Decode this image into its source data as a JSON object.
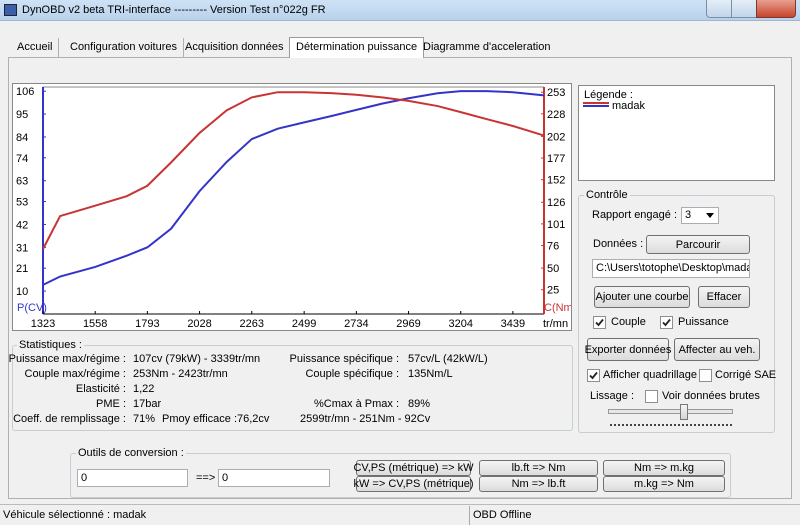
{
  "window": {
    "title": "DynOBD v2 beta TRI-interface --------- Version Test n°022g FR"
  },
  "tabs": [
    "Accueil",
    "Configuration voitures",
    "Acquisition données",
    "Détermination puissance",
    "Diagramme d'acceleration"
  ],
  "chart": {
    "type": "line",
    "x_label": "tr/mn",
    "y_label": "P(CV)",
    "y2_label": "C(Nm)",
    "xlim": [
      1323,
      3579
    ],
    "xticks": [
      1323,
      1558,
      1793,
      2028,
      2263,
      2499,
      2734,
      2969,
      3204,
      3439
    ],
    "ylim": [
      -1,
      108
    ],
    "yticks": [
      10,
      21,
      31,
      42,
      53,
      63,
      74,
      84,
      95,
      106
    ],
    "y2lim": [
      -3,
      259
    ],
    "y2ticks": [
      25,
      50,
      76,
      101,
      126,
      152,
      177,
      202,
      228,
      253
    ],
    "x": [
      1323,
      1400,
      1558,
      1700,
      1793,
      1900,
      2028,
      2150,
      2263,
      2380,
      2499,
      2620,
      2734,
      2850,
      2969,
      3100,
      3204,
      3320,
      3439,
      3579
    ],
    "series": [
      {
        "color": "#3434c8",
        "values": [
          13,
          17,
          21.6,
          27,
          31,
          40,
          58,
          72,
          83,
          88,
          91,
          94,
          97,
          100,
          102.6,
          105,
          106,
          106,
          105.5,
          104
        ]
      },
      {
        "color": "#c83434",
        "axis": "y2",
        "values": [
          72,
          110,
          122,
          133,
          145,
          172,
          206,
          232,
          247,
          253,
          253,
          252,
          250,
          247,
          243,
          237,
          230,
          222,
          214,
          203
        ]
      }
    ]
  },
  "legend": {
    "title": "Légende :",
    "entries": [
      "madak"
    ]
  },
  "controle": {
    "title": "Contrôle",
    "rapport_label": "Rapport engagé :",
    "rapport_value": "3",
    "donnees_label": "Données :",
    "parcourir": "Parcourir",
    "path": "C:\\Users\\totophe\\Desktop\\madak",
    "ajouter": "Ajouter une courbe",
    "effacer": "Effacer",
    "exporter": "Exporter données",
    "affecter": "Affecter au veh.",
    "lissage_label": "Lissage :",
    "checks": [
      {
        "label": "Couple",
        "checked": true
      },
      {
        "label": "Puissance",
        "checked": true
      },
      {
        "label": "Afficher quadrillage",
        "checked": true
      },
      {
        "label": "Corrigé SAE",
        "checked": false
      },
      {
        "label": "Voir données brutes",
        "checked": false
      }
    ]
  },
  "statistiques": {
    "title": "Statistiques :",
    "items": [
      {
        "label": "Puissance max/régime :",
        "value": "107cv (79kW) - 3339tr/mn"
      },
      {
        "label": "Couple max/régime :",
        "value": "253Nm - 2423tr/mn"
      },
      {
        "label": "Elasticité :",
        "value": "1,22"
      },
      {
        "label": "PME :",
        "value": "17bar"
      },
      {
        "label": "Coeff. de remplissage :",
        "value": "71%"
      },
      {
        "label": "Puissance spécifique :",
        "value": "57cv/L (42kW/L)"
      },
      {
        "label": "Couple spécifique :",
        "value": "135Nm/L"
      },
      {
        "label": "%Cmax à Pmax :",
        "value": "89%"
      },
      {
        "label": "Pmoy efficace :",
        "value": "76,2cv"
      }
    ],
    "extra": "2599tr/mn - 251Nm - 92Cv"
  },
  "conversion": {
    "title": "Outils de conversion :",
    "input": "0",
    "arrow": "==>",
    "output": "0",
    "buttons": [
      "CV,PS (métrique) => kW",
      "kW => CV,PS (métrique)",
      "lb.ft => Nm",
      "Nm => lb.ft",
      "Nm => m.kg",
      "m.kg => Nm"
    ]
  },
  "status": {
    "vehicle": "Véhicule sélectionné : madak",
    "obd": "OBD Offline"
  }
}
